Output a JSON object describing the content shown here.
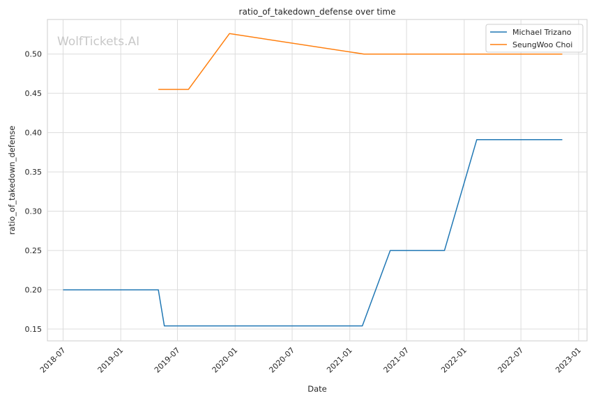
{
  "chart_data": {
    "type": "line",
    "title": "ratio_of_takedown_defense over time",
    "xlabel": "Date",
    "ylabel": "ratio_of_takedown_defense",
    "watermark": "WolfTickets.AI",
    "x_ticks": [
      "2018-07",
      "2019-01",
      "2019-07",
      "2020-01",
      "2020-07",
      "2021-01",
      "2021-07",
      "2022-01",
      "2022-07",
      "2023-01"
    ],
    "y_ticks": [
      "0.15",
      "0.20",
      "0.25",
      "0.30",
      "0.35",
      "0.40",
      "0.45",
      "0.50"
    ],
    "xlim": [
      "2018-05-12",
      "2023-01-28"
    ],
    "ylim": [
      0.135,
      0.544
    ],
    "grid": true,
    "legend_position": "top-right",
    "series": [
      {
        "name": "Michael Trizano",
        "color": "#1f77b4",
        "points": [
          {
            "x": "2018-07-01",
            "y": 0.2
          },
          {
            "x": "2019-05-01",
            "y": 0.2
          },
          {
            "x": "2019-05-20",
            "y": 0.154
          },
          {
            "x": "2021-02-10",
            "y": 0.154
          },
          {
            "x": "2021-05-10",
            "y": 0.25
          },
          {
            "x": "2021-10-30",
            "y": 0.25
          },
          {
            "x": "2022-02-10",
            "y": 0.391
          },
          {
            "x": "2022-11-10",
            "y": 0.391
          }
        ]
      },
      {
        "name": "SeungWoo Choi",
        "color": "#ff7f0e",
        "points": [
          {
            "x": "2019-05-01",
            "y": 0.455
          },
          {
            "x": "2019-08-05",
            "y": 0.455
          },
          {
            "x": "2019-12-14",
            "y": 0.526
          },
          {
            "x": "2021-02-15",
            "y": 0.5
          },
          {
            "x": "2022-11-10",
            "y": 0.5
          }
        ]
      }
    ]
  }
}
